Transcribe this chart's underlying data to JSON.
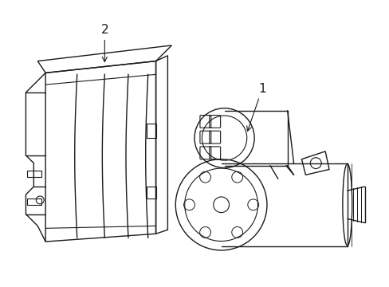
{
  "bg_color": "#ffffff",
  "line_color": "#1a1a1a",
  "line_width": 1.0,
  "fig_width": 4.89,
  "fig_height": 3.6,
  "dpi": 100,
  "label1": "1",
  "label2": "2"
}
